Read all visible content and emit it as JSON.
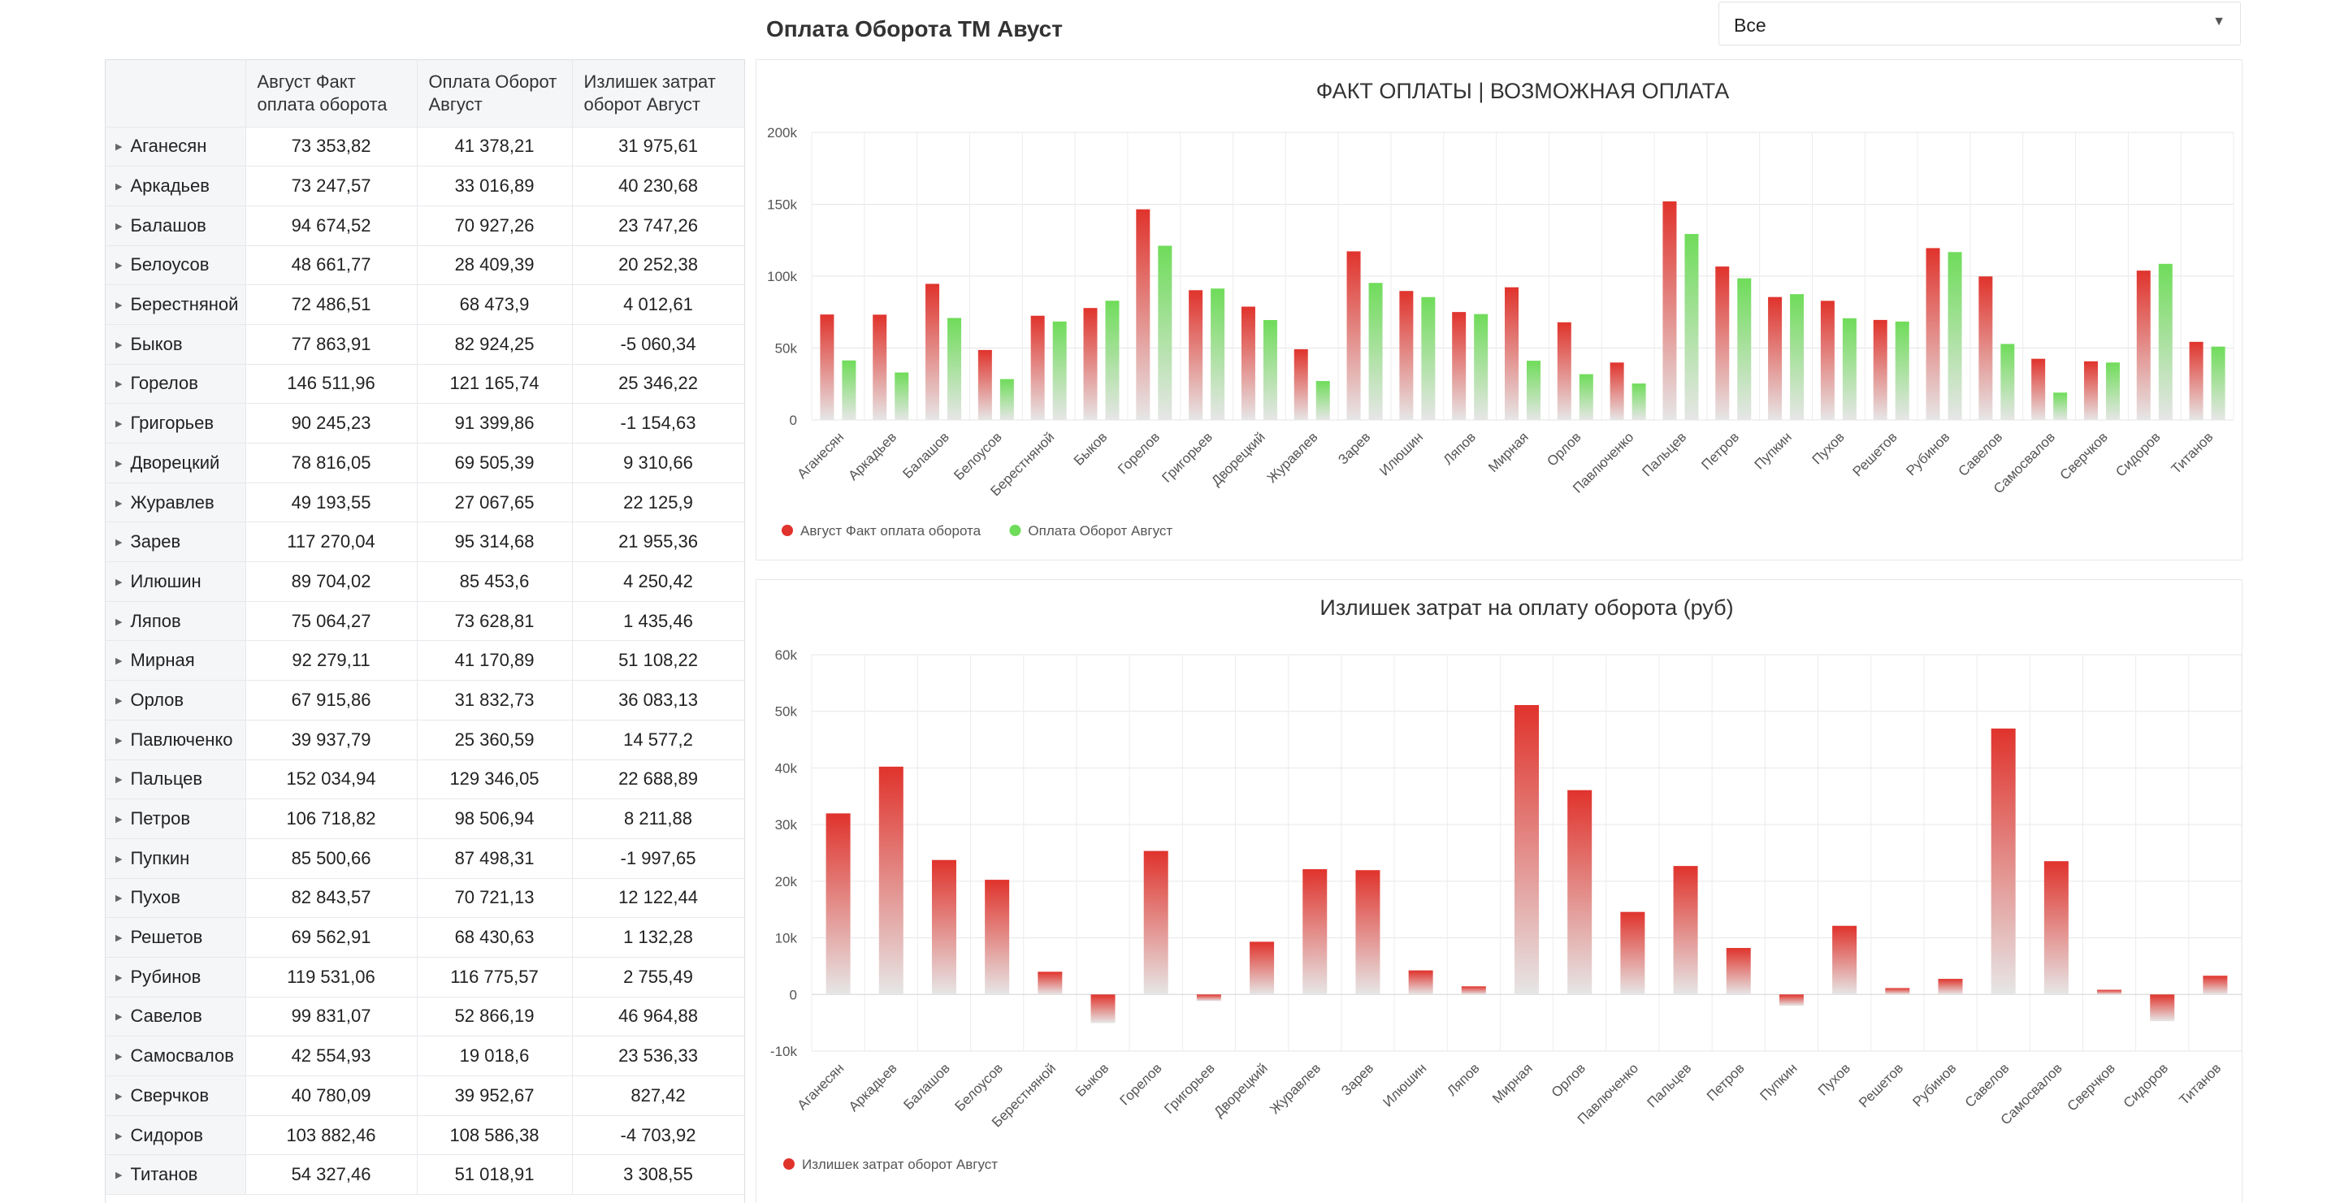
{
  "header": {
    "title": "Оплата Оборота ТМ Авуст"
  },
  "filter": {
    "value": "Все"
  },
  "table": {
    "columns": [
      "",
      "Август Факт оплата оборота",
      "Оплата Оборот Август",
      "Излишек затрат оборот Август"
    ],
    "rows": [
      {
        "name": "Аганесян",
        "fact": "73 353,82",
        "pay": "41 378,21",
        "excess": "31 975,61"
      },
      {
        "name": "Аркадьев",
        "fact": "73 247,57",
        "pay": "33 016,89",
        "excess": "40 230,68"
      },
      {
        "name": "Балашов",
        "fact": "94 674,52",
        "pay": "70 927,26",
        "excess": "23 747,26"
      },
      {
        "name": "Белоусов",
        "fact": "48 661,77",
        "pay": "28 409,39",
        "excess": "20 252,38"
      },
      {
        "name": "Берестняной",
        "fact": "72 486,51",
        "pay": "68 473,9",
        "excess": "4 012,61"
      },
      {
        "name": "Быков",
        "fact": "77 863,91",
        "pay": "82 924,25",
        "excess": "-5 060,34"
      },
      {
        "name": "Горелов",
        "fact": "146 511,96",
        "pay": "121 165,74",
        "excess": "25 346,22"
      },
      {
        "name": "Григорьев",
        "fact": "90 245,23",
        "pay": "91 399,86",
        "excess": "-1 154,63"
      },
      {
        "name": "Дворецкий",
        "fact": "78 816,05",
        "pay": "69 505,39",
        "excess": "9 310,66"
      },
      {
        "name": "Журавлев",
        "fact": "49 193,55",
        "pay": "27 067,65",
        "excess": "22 125,9"
      },
      {
        "name": "Зарев",
        "fact": "117 270,04",
        "pay": "95 314,68",
        "excess": "21 955,36"
      },
      {
        "name": "Илюшин",
        "fact": "89 704,02",
        "pay": "85 453,6",
        "excess": "4 250,42"
      },
      {
        "name": "Ляпов",
        "fact": "75 064,27",
        "pay": "73 628,81",
        "excess": "1 435,46"
      },
      {
        "name": "Мирная",
        "fact": "92 279,11",
        "pay": "41 170,89",
        "excess": "51 108,22"
      },
      {
        "name": "Орлов",
        "fact": "67 915,86",
        "pay": "31 832,73",
        "excess": "36 083,13"
      },
      {
        "name": "Павлюченко",
        "fact": "39 937,79",
        "pay": "25 360,59",
        "excess": "14 577,2"
      },
      {
        "name": "Пальцев",
        "fact": "152 034,94",
        "pay": "129 346,05",
        "excess": "22 688,89"
      },
      {
        "name": "Петров",
        "fact": "106 718,82",
        "pay": "98 506,94",
        "excess": "8 211,88"
      },
      {
        "name": "Пупкин",
        "fact": "85 500,66",
        "pay": "87 498,31",
        "excess": "-1 997,65"
      },
      {
        "name": "Пухов",
        "fact": "82 843,57",
        "pay": "70 721,13",
        "excess": "12 122,44"
      },
      {
        "name": "Решетов",
        "fact": "69 562,91",
        "pay": "68 430,63",
        "excess": "1 132,28"
      },
      {
        "name": "Рубинов",
        "fact": "119 531,06",
        "pay": "116 775,57",
        "excess": "2 755,49"
      },
      {
        "name": "Савелов",
        "fact": "99 831,07",
        "pay": "52 866,19",
        "excess": "46 964,88"
      },
      {
        "name": "Самосвалов",
        "fact": "42 554,93",
        "pay": "19 018,6",
        "excess": "23 536,33"
      },
      {
        "name": "Сверчков",
        "fact": "40 780,09",
        "pay": "39 952,67",
        "excess": "827,42"
      },
      {
        "name": "Сидоров",
        "fact": "103 882,46",
        "pay": "108 586,38",
        "excess": "-4 703,92"
      },
      {
        "name": "Титанов",
        "fact": "54 327,46",
        "pay": "51 018,91",
        "excess": "3 308,55"
      }
    ]
  },
  "chart_data": [
    {
      "type": "bar",
      "title": "ФАКТ ОПЛАТЫ | ВОЗМОЖНАЯ ОПЛАТА",
      "categories": [
        "Аганесян",
        "Аркадьев",
        "Балашов",
        "Белоусов",
        "Берестняной",
        "Быков",
        "Горелов",
        "Григорьев",
        "Дворецкий",
        "Журавлев",
        "Зарев",
        "Илюшин",
        "Ляпов",
        "Мирная",
        "Орлов",
        "Павлюченко",
        "Пальцев",
        "Петров",
        "Пупкин",
        "Пухов",
        "Решетов",
        "Рубинов",
        "Савелов",
        "Самосвалов",
        "Сверчков",
        "Сидоров",
        "Титанов"
      ],
      "series": [
        {
          "name": "Август Факт оплата оборота",
          "color": "#e0332c",
          "values": [
            73353.82,
            73247.57,
            94674.52,
            48661.77,
            72486.51,
            77863.91,
            146511.96,
            90245.23,
            78816.05,
            49193.55,
            117270.04,
            89704.02,
            75064.27,
            92279.11,
            67915.86,
            39937.79,
            152034.94,
            106718.82,
            85500.66,
            82843.57,
            69562.91,
            119531.06,
            99831.07,
            42554.93,
            40780.09,
            103882.46,
            54327.46
          ]
        },
        {
          "name": "Оплата Оборот Август",
          "color": "#6fdc5a",
          "values": [
            41378.21,
            33016.89,
            70927.26,
            28409.39,
            68473.9,
            82924.25,
            121165.74,
            91399.86,
            69505.39,
            27067.65,
            95314.68,
            85453.6,
            73628.81,
            41170.89,
            31832.73,
            25360.59,
            129346.05,
            98506.94,
            87498.31,
            70721.13,
            68430.63,
            116775.57,
            52866.19,
            19018.6,
            39952.67,
            108586.38,
            51018.91
          ]
        }
      ],
      "yticks": [
        "0",
        "50k",
        "100k",
        "150k",
        "200k"
      ],
      "ylim": [
        0,
        200000
      ],
      "legend": "bottom-left",
      "grid": true
    },
    {
      "type": "bar",
      "title": "Излишек затрат на оплату оборота (руб)",
      "categories": [
        "Аганесян",
        "Аркадьев",
        "Балашов",
        "Белоусов",
        "Берестняной",
        "Быков",
        "Горелов",
        "Григорьев",
        "Дворецкий",
        "Журавлев",
        "Зарев",
        "Илюшин",
        "Ляпов",
        "Мирная",
        "Орлов",
        "Павлюченко",
        "Пальцев",
        "Петров",
        "Пупкин",
        "Пухов",
        "Решетов",
        "Рубинов",
        "Савелов",
        "Самосвалов",
        "Сверчков",
        "Сидоров",
        "Титанов"
      ],
      "series": [
        {
          "name": "Излишек затрат оборот Август",
          "color": "#e0332c",
          "values": [
            31975.61,
            40230.68,
            23747.26,
            20252.38,
            4012.61,
            -5060.34,
            25346.22,
            -1154.63,
            9310.66,
            22125.9,
            21955.36,
            4250.42,
            1435.46,
            51108.22,
            36083.13,
            14577.2,
            22688.89,
            8211.88,
            -1997.65,
            12122.44,
            1132.28,
            2755.49,
            46964.88,
            23536.33,
            827.42,
            -4703.92,
            3308.55
          ]
        }
      ],
      "yticks": [
        "-10k",
        "0",
        "10k",
        "20k",
        "30k",
        "40k",
        "50k",
        "60k"
      ],
      "ylim": [
        -10000,
        60000
      ],
      "legend": "bottom-left",
      "grid": true
    }
  ]
}
